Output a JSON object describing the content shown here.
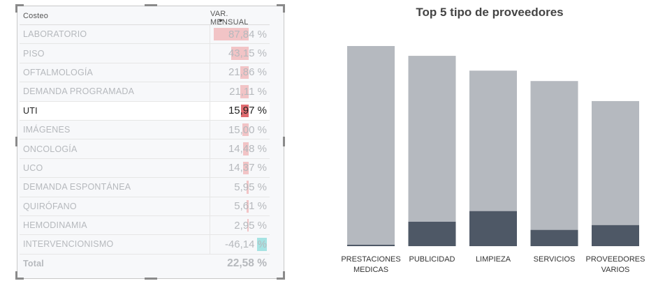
{
  "table": {
    "header": {
      "name": "Costeo",
      "value": "VAR. MENSUAL"
    },
    "rows": [
      {
        "name": "LABORATORIO",
        "value": "87,84 %",
        "pct": 87.84
      },
      {
        "name": "PISO",
        "value": "43,15 %",
        "pct": 43.15
      },
      {
        "name": "OFTALMOLOGÍA",
        "value": "21,86 %",
        "pct": 21.86
      },
      {
        "name": "DEMANDA PROGRAMADA",
        "value": "21,11 %",
        "pct": 21.11
      },
      {
        "name": "UTI",
        "value": "15,97 %",
        "pct": 15.97,
        "selected": true
      },
      {
        "name": "IMÁGENES",
        "value": "15,00 %",
        "pct": 15.0
      },
      {
        "name": "ONCOLOGÍA",
        "value": "14,48 %",
        "pct": 14.48
      },
      {
        "name": "UCO",
        "value": "14,37 %",
        "pct": 14.37
      },
      {
        "name": "DEMANDA ESPONTÁNEA",
        "value": "5,95 %",
        "pct": 5.95
      },
      {
        "name": "QUIRÓFANO",
        "value": "5,61 %",
        "pct": 5.61
      },
      {
        "name": "HEMODINAMIA",
        "value": "2,95 %",
        "pct": 2.95
      },
      {
        "name": "INTERVENCIONISMO",
        "value": "-46,14 %",
        "pct": -46.14
      }
    ],
    "total": {
      "name": "Total",
      "value": "22,58 %"
    },
    "colors": {
      "positive_bar": "#f2c4c6",
      "positive_bar_selected": "#e06b70",
      "negative_bar": "#a6e3e3"
    }
  },
  "chart_data": {
    "type": "bar",
    "title": "Top 5 tipo de proveedores",
    "categories": [
      "PRESTACIONES MEDICAS",
      "PUBLICIDAD",
      "LIMPIEZA",
      "SERVICIOS",
      "PROVEEDORES VARIOS"
    ],
    "category_lines": [
      [
        "PRESTACIONES",
        "MEDICAS"
      ],
      [
        "PUBLICIDAD"
      ],
      [
        "LIMPIEZA"
      ],
      [
        "SERVICIOS"
      ],
      [
        "PROVEEDORES",
        "VARIOS"
      ]
    ],
    "series": [
      {
        "values": [
          100,
          95.1,
          87.7,
          82.5,
          72.5
        ]
      },
      {
        "values": [
          0.7,
          12.2,
          17.5,
          8.1,
          10.5
        ]
      }
    ],
    "ylim": [
      0,
      100
    ],
    "colors": {
      "total": "#b5b9bf",
      "highlight": "#4e5866"
    },
    "grid": false,
    "legend": "none"
  }
}
